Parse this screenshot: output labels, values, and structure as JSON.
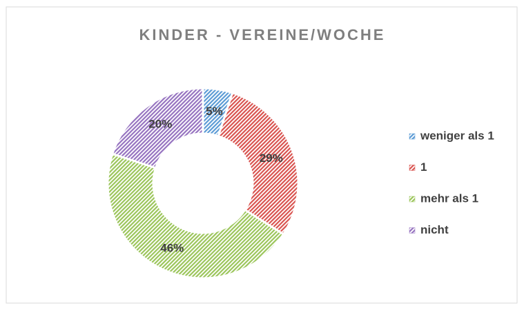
{
  "chart_data": {
    "type": "donut",
    "title": "KINDER - VEREINE/WOCHE",
    "categories": [
      "weniger als 1",
      "1",
      "mehr als 1",
      "nicht"
    ],
    "values": [
      5,
      29,
      46,
      20
    ],
    "value_labels": [
      "5%",
      "29%",
      "46%",
      "20%"
    ],
    "colors": [
      "#5b9bd5",
      "#d9534f",
      "#9bc55a",
      "#9673c0"
    ],
    "legend": "right"
  }
}
